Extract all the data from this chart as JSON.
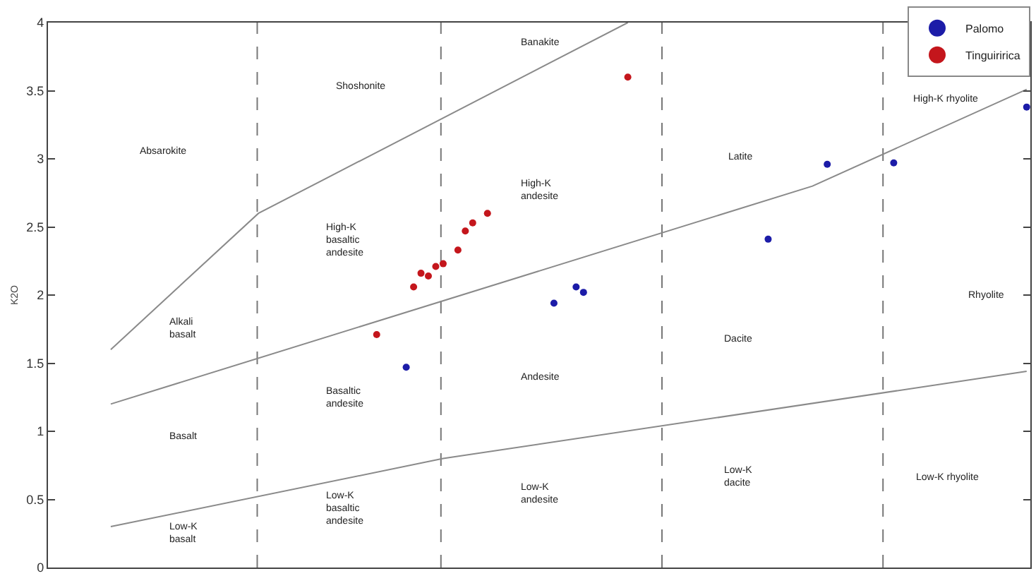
{
  "chart_data": {
    "type": "scatter",
    "ylabel": "K2O",
    "categories": [
      null,
      null,
      null,
      null,
      null,
      null,
      null,
      null,
      null,
      null,
      null,
      null,
      null,
      null,
      null,
      null,
      null,
      null,
      null,
      null,
      null,
      null,
      null,
      null,
      null,
      null,
      null,
      null,
      null,
      null,
      null,
      null,
      null,
      null,
      null,
      null,
      null,
      null,
      null,
      null,
      null,
      null,
      null,
      null,
      null,
      null,
      null,
      null,
      null,
      null,
      null,
      null,
      null,
      null,
      null,
      null,
      null,
      null,
      null,
      null,
      null,
      null,
      null,
      null,
      null,
      null,
      null,
      null,
      null,
      null,
      null,
      null,
      null,
      null,
      null,
      null,
      null,
      null,
      null,
      null,
      null,
      null,
      null,
      null,
      null,
      null,
      null,
      null,
      null,
      null,
      null,
      null,
      null,
      null,
      null,
      null,
      null,
      null,
      null,
      null,
      null,
      null,
      null,
      null,
      null,
      null,
      null,
      null,
      null,
      null,
      null,
      null,
      null,
      null,
      null,
      null,
      null,
      null,
      null,
      null,
      null,
      null,
      null,
      null,
      null,
      null,
      null,
      null,
      null,
      null,
      null,
      null,
      null
    ],
    "ylim": [
      0,
      4
    ],
    "yticks": [
      0,
      0.5,
      1,
      1.5,
      2,
      2.5,
      3,
      3.5,
      4
    ],
    "tick_labels": "y",
    "grid": false,
    "legend": "top right",
    "marker": "circle",
    "series": [
      {
        "name": "Palomo",
        "color": "#1c1ca8",
        "values": [
          null,
          null,
          null,
          null,
          null,
          null,
          null,
          null,
          null,
          null,
          null,
          null,
          null,
          null,
          null,
          null,
          null,
          null,
          null,
          null,
          null,
          null,
          null,
          null,
          null,
          null,
          null,
          null,
          null,
          null,
          null,
          null,
          null,
          null,
          null,
          null,
          null,
          null,
          null,
          null,
          null,
          null,
          null,
          null,
          null,
          null,
          null,
          null,
          1.47,
          null,
          null,
          null,
          null,
          null,
          null,
          null,
          null,
          null,
          null,
          null,
          null,
          null,
          null,
          null,
          null,
          null,
          null,
          null,
          1.94,
          null,
          null,
          2.06,
          2.02,
          null,
          null,
          null,
          null,
          null,
          null,
          null,
          null,
          null,
          null,
          null,
          null,
          null,
          null,
          null,
          null,
          null,
          null,
          null,
          null,
          null,
          null,
          null,
          null,
          2.41,
          null,
          null,
          null,
          null,
          null,
          null,
          null,
          2.96,
          null,
          null,
          null,
          null,
          null,
          null,
          null,
          null,
          2.97,
          null,
          null,
          null,
          null,
          null,
          null,
          null,
          null,
          null,
          null,
          null,
          null,
          null,
          null,
          null,
          null,
          null,
          3.38
        ]
      },
      {
        "name": "Tinguiririca",
        "color": "#c4161c",
        "values": [
          null,
          null,
          null,
          null,
          null,
          null,
          null,
          null,
          null,
          null,
          null,
          null,
          null,
          null,
          null,
          null,
          null,
          null,
          null,
          null,
          null,
          null,
          null,
          null,
          null,
          null,
          null,
          null,
          null,
          null,
          null,
          null,
          null,
          null,
          null,
          null,
          null,
          null,
          null,
          null,
          null,
          null,
          null,
          null,
          1.71,
          null,
          null,
          null,
          null,
          2.06,
          2.16,
          2.14,
          2.21,
          2.23,
          null,
          2.33,
          2.47,
          2.53,
          null,
          2.6,
          null,
          null,
          null,
          null,
          null,
          null,
          null,
          null,
          null,
          null,
          null,
          null,
          null,
          null,
          null,
          null,
          null,
          null,
          3.6,
          null,
          null,
          null,
          null,
          null,
          null,
          null,
          null,
          null,
          null,
          null,
          null,
          null,
          null,
          null,
          null,
          null,
          null,
          null,
          null,
          null,
          null,
          null,
          null,
          null,
          null,
          null,
          null,
          null,
          null,
          null,
          null,
          null,
          null,
          null,
          null,
          null,
          null,
          null,
          null,
          null,
          null,
          null,
          null,
          null,
          null,
          null,
          null,
          null,
          null,
          null,
          null,
          null,
          null
        ]
      },
      {
        "type": "line",
        "color": "#8a8a8a",
        "marker": "none",
        "line_style": "solid",
        "values": [
          null,
          null,
          null,
          null,
          null,
          null,
          null,
          null,
          1.6,
          null,
          null,
          null,
          null,
          null,
          null,
          null,
          null,
          null,
          null,
          null,
          null,
          null,
          null,
          null,
          null,
          null,
          null,
          null,
          2.6,
          null,
          null,
          null,
          null,
          null,
          null,
          null,
          null,
          null,
          null,
          null,
          null,
          null,
          null,
          null,
          null,
          null,
          null,
          null,
          null,
          null,
          null,
          null,
          null,
          null,
          null,
          null,
          null,
          null,
          null,
          null,
          null,
          null,
          null,
          null,
          null,
          null,
          null,
          null,
          null,
          null,
          null,
          null,
          null,
          null,
          null,
          null,
          null,
          null,
          4.0,
          null,
          null,
          null,
          null,
          null,
          null,
          null,
          null,
          null,
          null,
          null,
          null,
          null,
          null,
          null,
          null,
          null,
          null,
          null,
          null,
          null,
          null,
          null,
          null,
          null,
          null,
          null,
          null,
          null,
          null,
          null,
          null,
          null,
          null,
          null,
          null,
          null,
          null,
          null,
          null,
          null,
          null,
          null,
          null,
          null,
          null,
          null,
          null,
          null,
          null,
          null,
          null,
          null,
          null
        ]
      },
      {
        "type": "line",
        "color": "#8a8a8a",
        "marker": "none",
        "line_style": "solid",
        "values": [
          null,
          null,
          null,
          null,
          null,
          null,
          null,
          null,
          1.2,
          null,
          null,
          null,
          null,
          null,
          null,
          null,
          null,
          null,
          null,
          null,
          null,
          null,
          null,
          null,
          null,
          null,
          null,
          null,
          null,
          null,
          null,
          null,
          null,
          null,
          null,
          null,
          null,
          null,
          null,
          null,
          null,
          null,
          null,
          null,
          null,
          null,
          null,
          null,
          null,
          null,
          null,
          null,
          null,
          null,
          null,
          null,
          null,
          null,
          null,
          null,
          null,
          null,
          null,
          null,
          null,
          null,
          null,
          null,
          null,
          null,
          null,
          null,
          null,
          null,
          null,
          null,
          null,
          null,
          null,
          null,
          null,
          null,
          null,
          null,
          null,
          null,
          null,
          null,
          null,
          null,
          null,
          null,
          null,
          null,
          null,
          null,
          null,
          null,
          null,
          null,
          null,
          null,
          null,
          2.8,
          null,
          null,
          null,
          null,
          null,
          null,
          null,
          null,
          null,
          null,
          null,
          null,
          null,
          null,
          null,
          null,
          null,
          null,
          null,
          null,
          null,
          null,
          null,
          null,
          null,
          null,
          null,
          null,
          3.51
        ]
      },
      {
        "type": "line",
        "color": "#8a8a8a",
        "marker": "none",
        "line_style": "solid",
        "values": [
          null,
          null,
          null,
          null,
          null,
          null,
          null,
          null,
          0.3,
          null,
          null,
          null,
          null,
          null,
          null,
          null,
          null,
          null,
          null,
          null,
          null,
          null,
          null,
          null,
          null,
          null,
          null,
          null,
          null,
          null,
          null,
          null,
          null,
          null,
          null,
          null,
          null,
          null,
          null,
          null,
          null,
          null,
          null,
          null,
          null,
          null,
          null,
          null,
          null,
          null,
          null,
          null,
          null,
          0.8,
          null,
          null,
          null,
          null,
          null,
          null,
          null,
          null,
          null,
          null,
          null,
          null,
          null,
          null,
          null,
          null,
          null,
          null,
          null,
          null,
          null,
          null,
          null,
          null,
          null,
          null,
          null,
          null,
          null,
          null,
          null,
          null,
          null,
          null,
          null,
          null,
          null,
          null,
          null,
          null,
          null,
          null,
          null,
          null,
          null,
          null,
          null,
          null,
          null,
          null,
          null,
          null,
          null,
          null,
          null,
          null,
          null,
          null,
          null,
          null,
          null,
          null,
          null,
          null,
          null,
          null,
          null,
          null,
          null,
          null,
          null,
          null,
          null,
          null,
          null,
          null,
          null,
          null,
          1.44
        ]
      }
    ],
    "annotations": [
      "Absarokite",
      "Shoshonite",
      "Banakite",
      "High-K\nbasaltic\nandesite",
      "High-K\nandesite",
      "Latite",
      "High-K rhyolite",
      "Alkali\nbasalt",
      "Rhyolite",
      "Dacite",
      "Andesite",
      "Basaltic\nandesite",
      "Basalt",
      "Low-K\nandesite",
      "Low-K\ndacite",
      "Low-K rhyolite",
      "Low-K\nbasalt",
      "Low-K\nbasaltic\nandesite"
    ]
  }
}
